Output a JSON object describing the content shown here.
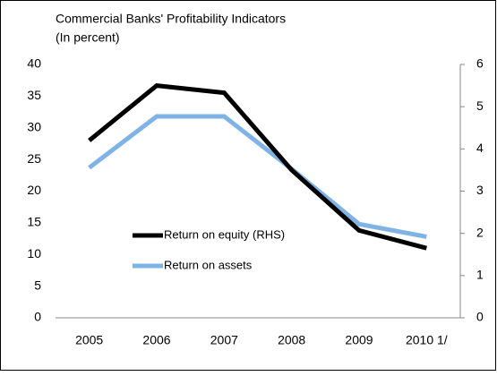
{
  "chart_data": {
    "type": "line",
    "title": "Commercial Banks' Profitability Indicators",
    "subtitle": "(In percent)",
    "categories": [
      "2005",
      "2006",
      "2007",
      "2008",
      "2009",
      "2010 1/"
    ],
    "series": [
      {
        "name": "Return on equity (RHS)",
        "color": "#000000",
        "axis": "y2",
        "values": [
          4.2,
          5.5,
          5.33,
          3.5,
          2.07,
          1.65
        ]
      },
      {
        "name": "Return on assets",
        "color": "#7fb2e5",
        "values": [
          23.7,
          31.8,
          31.8,
          23.5,
          14.8,
          12.8
        ]
      }
    ],
    "ylim": [
      0,
      40
    ],
    "yticks": [
      0,
      5,
      10,
      15,
      20,
      25,
      30,
      35,
      40
    ],
    "y2lim": [
      0,
      6
    ],
    "y2ticks": [
      0,
      1,
      2,
      3,
      4,
      5,
      6
    ]
  }
}
